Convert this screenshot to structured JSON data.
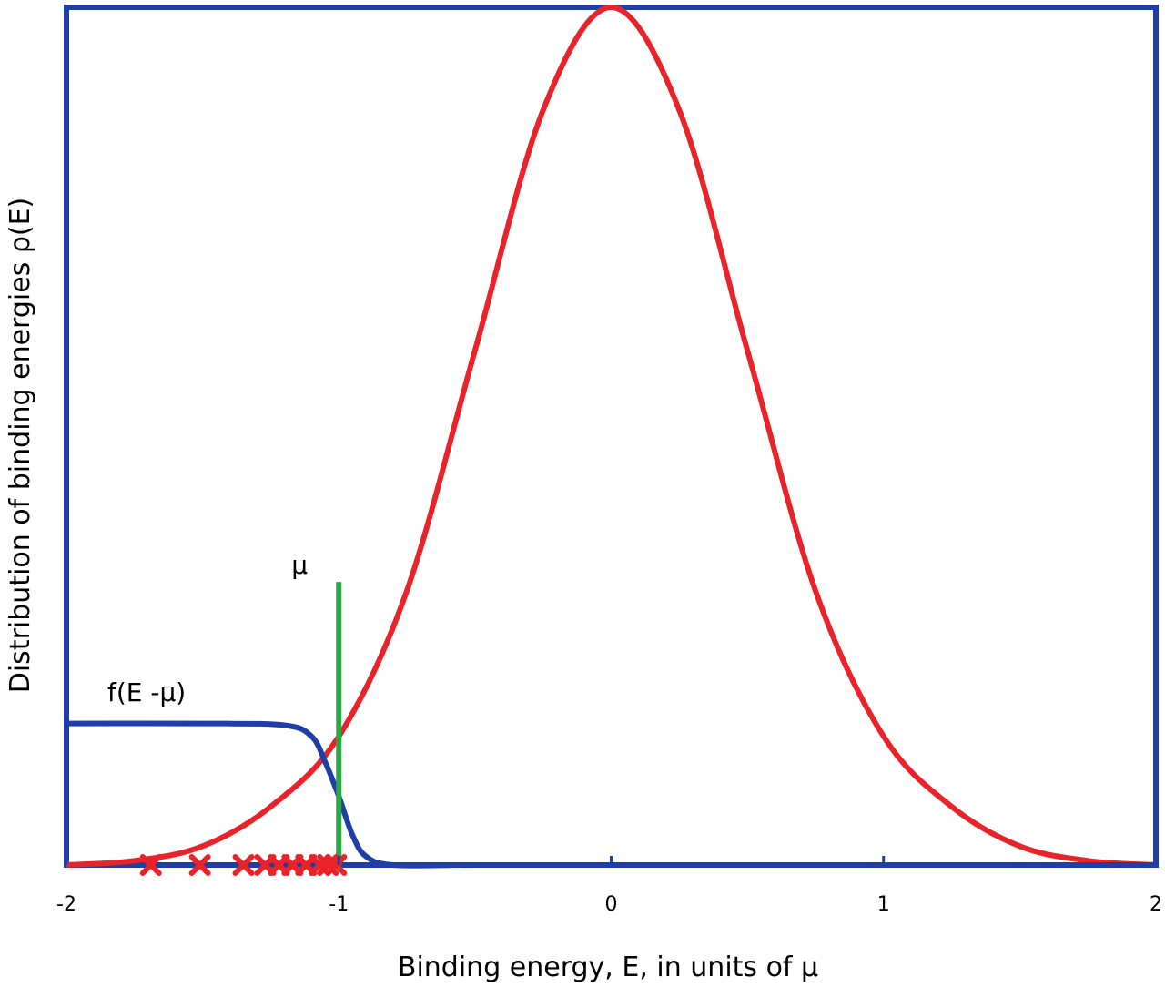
{
  "chart_data": {
    "type": "line",
    "xlabel": "Binding energy, E, in units of μ",
    "ylabel": "Distribution of binding energies ρ(E)",
    "xlim": [
      -2,
      2
    ],
    "ylim": [
      0,
      1
    ],
    "xticks": [
      "-2",
      "-1",
      "0",
      "1",
      "2"
    ],
    "xtick_values": [
      -2,
      -1,
      0,
      1,
      2
    ],
    "grid": false,
    "colors": {
      "frame": "#1f3fa6",
      "gaussian": "#e8232a",
      "fermi": "#1f3fa6",
      "mu_line": "#2aa845",
      "markers": "#e8232a"
    },
    "series": [
      {
        "label": "",
        "curve": "gaussian",
        "x": [
          -2.0,
          -1.75,
          -1.5,
          -1.25,
          -1.0,
          -0.75,
          -0.5,
          -0.25,
          0.0,
          0.25,
          0.5,
          0.75,
          1.0,
          1.25,
          1.5,
          1.75,
          2.0
        ],
        "y": [
          0.0,
          0.005,
          0.022,
          0.068,
          0.15,
          0.32,
          0.6,
          0.88,
          1.0,
          0.88,
          0.6,
          0.32,
          0.15,
          0.068,
          0.022,
          0.005,
          0.0
        ]
      },
      {
        "label": "f(E -μ)",
        "curve": "fermi",
        "x": [
          -2.0,
          -1.5,
          -1.2,
          -1.1,
          -1.05,
          -1.0,
          -0.95,
          -0.9,
          -0.8,
          -0.5,
          0.0,
          2.0
        ],
        "y": [
          0.165,
          0.165,
          0.163,
          0.15,
          0.12,
          0.08,
          0.035,
          0.01,
          0.0,
          0.0,
          0.0,
          0.0
        ]
      }
    ],
    "mu_line": {
      "label": "μ",
      "x": -1.0,
      "y_top": 0.33
    },
    "markers": {
      "symbol": "x",
      "x": [
        -1.69,
        -1.51,
        -1.35,
        -1.27,
        -1.22,
        -1.17,
        -1.12,
        -1.07,
        -1.04,
        -1.01
      ]
    }
  }
}
